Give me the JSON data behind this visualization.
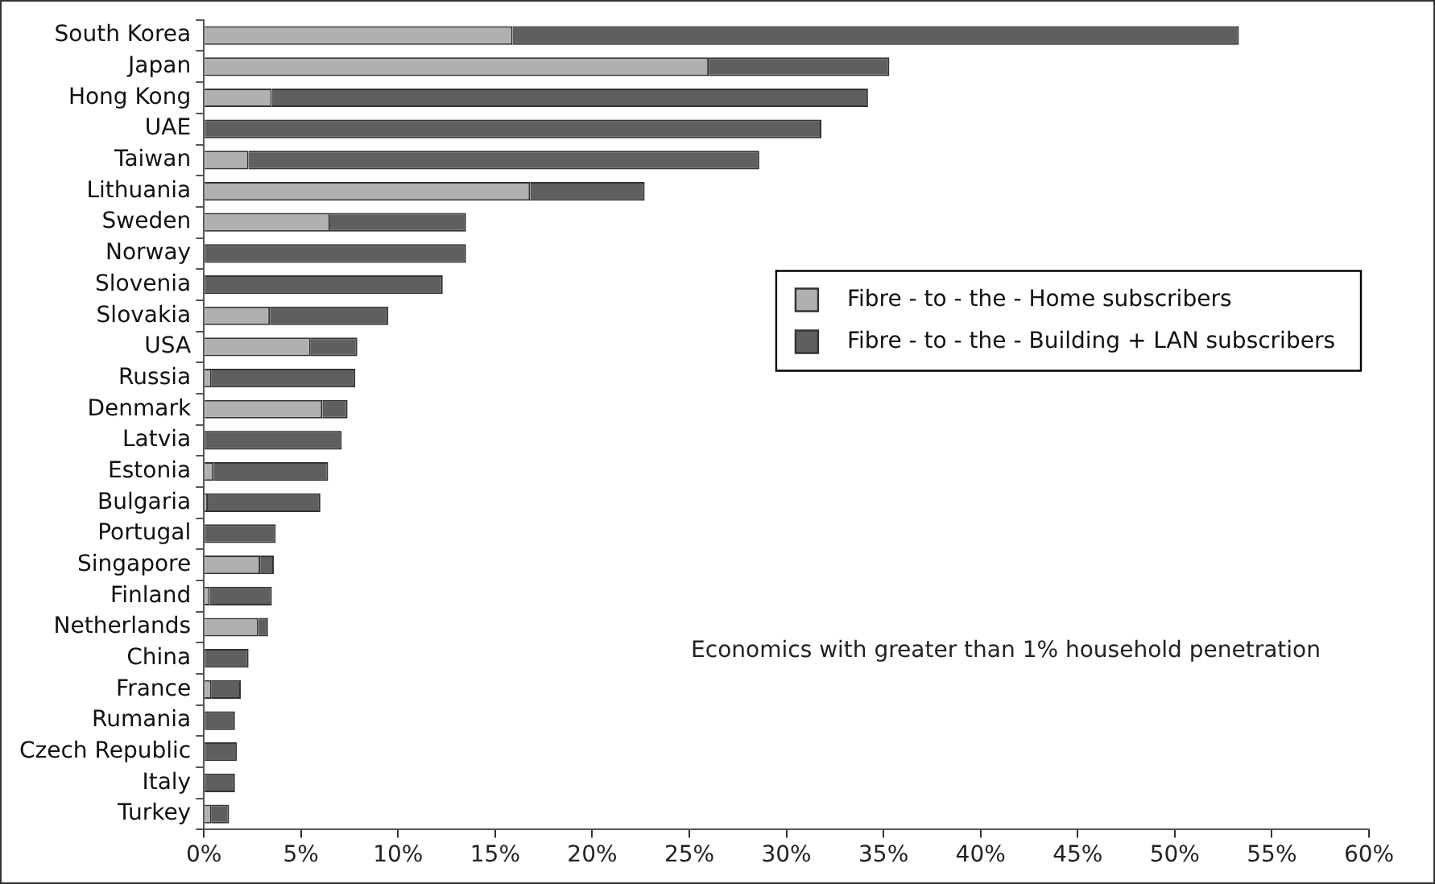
{
  "chart_data": {
    "type": "bar",
    "orientation": "horizontal",
    "stacked": true,
    "categories": [
      "South Korea",
      "Japan",
      "Hong Kong",
      "UAE",
      "Taiwan",
      "Lithuania",
      "Sweden",
      "Norway",
      "Slovenia",
      "Slovakia",
      "USA",
      "Russia",
      "Denmark",
      "Latvia",
      "Estonia",
      "Bulgaria",
      "Portugal",
      "Singapore",
      "Finland",
      "Netherlands",
      "China",
      "France",
      "Rumania",
      "Czech Republic",
      "Italy",
      "Turkey"
    ],
    "series": [
      {
        "name": "Fibre - to - the - Home subscribers",
        "color": "#b0b0b0",
        "values": [
          15.9,
          26.0,
          3.5,
          0,
          2.3,
          16.8,
          6.5,
          0,
          0,
          3.4,
          5.5,
          0.4,
          6.1,
          0,
          0.5,
          0.2,
          0,
          2.9,
          0.3,
          2.8,
          null,
          0.4,
          null,
          0,
          0,
          0.4
        ]
      },
      {
        "name": "Fibre - to - the - Building + LAN subscribers",
        "color": "#5f5f5f",
        "values": [
          37.4,
          9.3,
          30.7,
          31.8,
          26.3,
          5.9,
          7.0,
          13.5,
          12.3,
          6.1,
          2.4,
          7.4,
          1.3,
          7.1,
          5.9,
          5.8,
          3.7,
          0.7,
          3.2,
          0.5,
          2.3,
          1.5,
          1.6,
          1.7,
          1.6,
          0.9
        ]
      }
    ],
    "xlim": [
      0,
      60
    ],
    "xticks": [
      {
        "value": 0,
        "label": "0%"
      },
      {
        "value": 5,
        "label": "5%"
      },
      {
        "value": 10,
        "label": "10%"
      },
      {
        "value": 15,
        "label": "15%"
      },
      {
        "value": 20,
        "label": "20%"
      },
      {
        "value": 25,
        "label": "25%"
      },
      {
        "value": 30,
        "label": "30%"
      },
      {
        "value": 35,
        "label": "35%"
      },
      {
        "value": 40,
        "label": "40%"
      },
      {
        "value": 45,
        "label": "45%"
      },
      {
        "value": 50,
        "label": "50%"
      },
      {
        "value": 55,
        "label": "55%"
      },
      {
        "value": 60,
        "label": "60%"
      }
    ],
    "grid": false,
    "legend": "right",
    "annotations": [
      "Economics with greater than 1% household penetration"
    ]
  }
}
